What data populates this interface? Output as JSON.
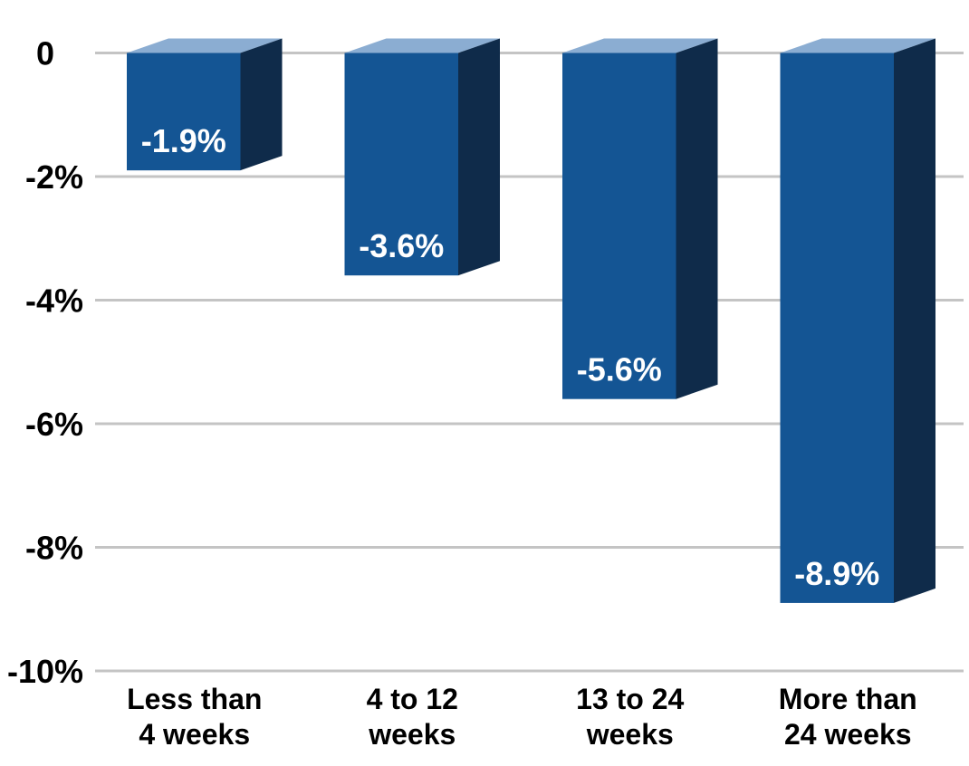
{
  "chart_data": {
    "type": "bar",
    "style": "3d-column-negative",
    "orientation": "vertical",
    "title": "",
    "xlabel": "",
    "ylabel": "",
    "categories": [
      [
        "Less than",
        "4 weeks"
      ],
      [
        "4 to 12",
        "weeks"
      ],
      [
        "13 to 24",
        "weeks"
      ],
      [
        "More than",
        "24 weeks"
      ]
    ],
    "values": [
      -1.9,
      -3.6,
      -5.6,
      -8.9
    ],
    "value_labels": [
      "-1.9%",
      "-3.6%",
      "-5.6%",
      "-8.9%"
    ],
    "y_ticks": {
      "values": [
        0,
        -2,
        -4,
        -6,
        -8,
        -10
      ],
      "labels": [
        "0",
        "-2%",
        "-4%",
        "-6%",
        "-8%",
        "-10%"
      ]
    },
    "ylim": [
      0,
      -10
    ],
    "grid": true,
    "legend": "none",
    "colors": {
      "bar_front": "#145594",
      "bar_side": "#0f2b4a",
      "bar_top": "#8badd2",
      "gridline": "#c4c4c4",
      "axis_text": "#000000",
      "value_text": "#ffffff",
      "background": "#ffffff"
    }
  }
}
